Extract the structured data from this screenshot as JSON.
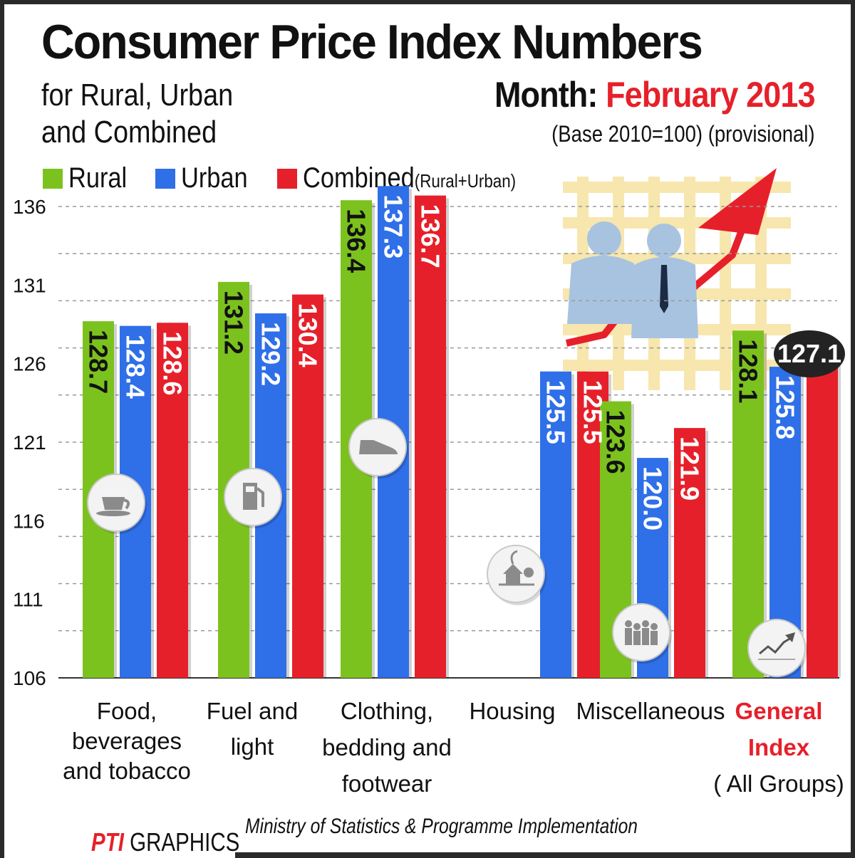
{
  "title": "Consumer Price Index Numbers",
  "subtitle": "for Rural, Urban\nand Combined",
  "month_label": "Month:",
  "month_value": "February 2013",
  "base_note": "(Base 2010=100)  (provisional)",
  "legend": [
    {
      "label": "Rural",
      "color": "#7cc21f"
    },
    {
      "label": "Urban",
      "color": "#2f6fe8"
    },
    {
      "label": "Combined",
      "note": "(Rural+Urban)",
      "color": "#e6202a"
    }
  ],
  "callout_value": "127.1",
  "source": "Ministry of Statistics & Programme Implementation",
  "credit": {
    "mark": "PTI",
    "text": "GRAPHICS"
  },
  "chart_data": {
    "type": "bar",
    "ylim": [
      106,
      136
    ],
    "yticks": [
      136,
      131,
      126,
      121,
      116,
      111,
      106
    ],
    "grid": true,
    "legend_position": "top-left",
    "categories": [
      {
        "lines": [
          "Food,",
          "beverages",
          "and tobacco"
        ],
        "highlight": false
      },
      {
        "lines": [
          "Fuel and",
          "light"
        ],
        "highlight": false
      },
      {
        "lines": [
          "Clothing,",
          "bedding and",
          "footwear"
        ],
        "highlight": false
      },
      {
        "lines": [
          "Housing"
        ],
        "highlight": false
      },
      {
        "lines": [
          "Miscellaneous"
        ],
        "highlight": false
      },
      {
        "lines": [
          "General",
          "Index",
          "( All Groups)"
        ],
        "highlight": true
      }
    ],
    "series": [
      {
        "name": "Rural",
        "color": "#7cc21f",
        "values": [
          128.7,
          131.2,
          136.4,
          null,
          123.6,
          128.1
        ]
      },
      {
        "name": "Urban",
        "color": "#2f6fe8",
        "values": [
          128.4,
          129.2,
          137.3,
          125.5,
          120.0,
          125.8
        ]
      },
      {
        "name": "Combined",
        "color": "#e6202a",
        "values": [
          128.6,
          130.4,
          136.7,
          125.5,
          121.9,
          127.1
        ]
      }
    ],
    "hidden_bar_labels": [
      [
        5,
        2
      ]
    ],
    "icons": [
      "cup-icon",
      "fuel-pump-icon",
      "shoe-icon",
      "house-icon",
      "people-icon",
      "growth-chart-icon"
    ]
  }
}
